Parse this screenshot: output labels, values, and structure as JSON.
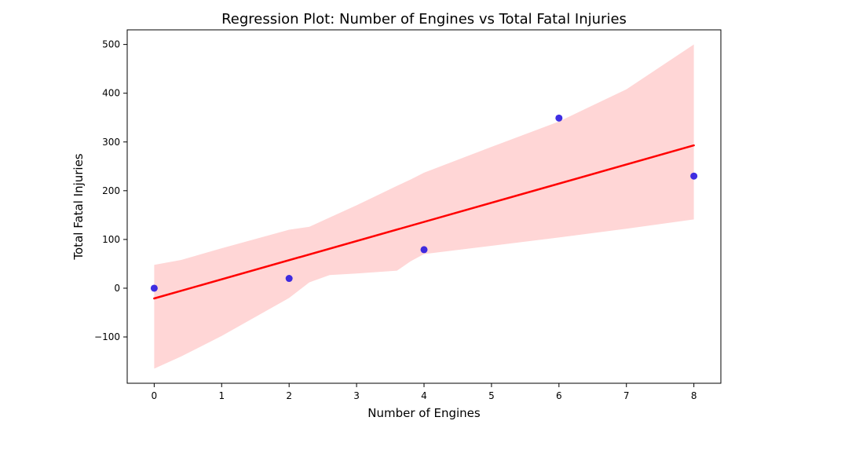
{
  "chart_data": {
    "type": "scatter",
    "title": "Regression Plot: Number of Engines vs Total Fatal Injuries",
    "xlabel": "Number of Engines",
    "ylabel": "Total Fatal Injuries",
    "xlim": [
      -0.4,
      8.4
    ],
    "ylim": [
      -195,
      530
    ],
    "xticks": [
      0,
      1,
      2,
      3,
      4,
      5,
      6,
      7,
      8
    ],
    "yticks": [
      -100,
      0,
      100,
      200,
      300,
      400,
      500
    ],
    "ytick_labels": [
      "−100",
      "0",
      "100",
      "200",
      "300",
      "400",
      "500"
    ],
    "grid": false,
    "points": [
      {
        "x": 0,
        "y": 0
      },
      {
        "x": 2,
        "y": 20
      },
      {
        "x": 4,
        "y": 79
      },
      {
        "x": 6,
        "y": 349
      },
      {
        "x": 8,
        "y": 230
      }
    ],
    "regression_line": {
      "x": [
        0,
        8
      ],
      "y": [
        -21,
        293
      ]
    },
    "confidence_band": {
      "x": [
        0,
        0.4,
        1,
        2,
        2.3,
        2.6,
        3,
        3.6,
        3.8,
        4,
        5,
        6,
        7,
        8
      ],
      "upper": [
        48,
        58,
        82,
        120,
        126,
        145,
        170,
        210,
        223,
        237,
        290,
        342,
        408,
        500
      ],
      "lower": [
        -165,
        -140,
        -98,
        -20,
        12,
        27,
        30,
        36,
        55,
        70,
        87,
        104,
        122,
        141
      ]
    },
    "colors": {
      "points": "#2a17e0",
      "line": "#ff0000",
      "band": "#ffd6d6"
    }
  }
}
